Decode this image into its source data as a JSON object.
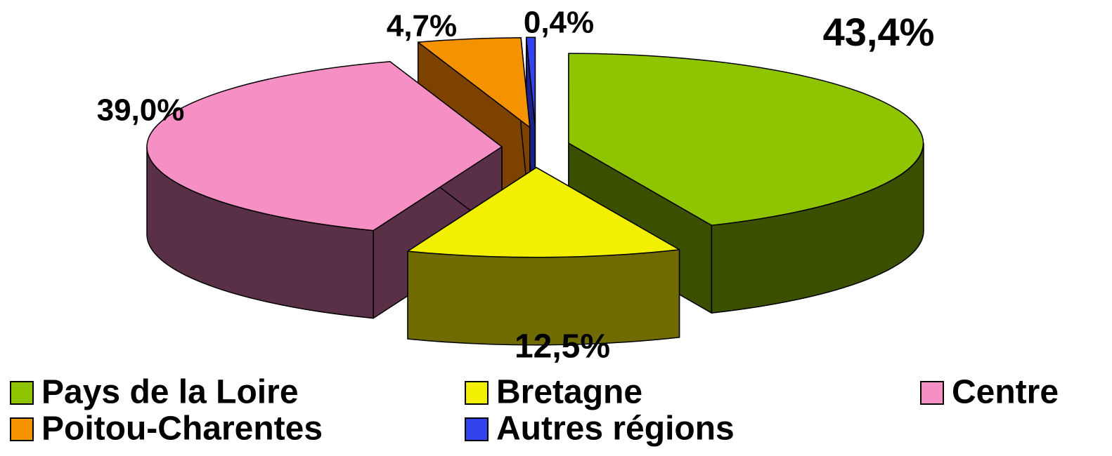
{
  "chart_data": {
    "type": "pie",
    "categories": [
      "Pays de la Loire",
      "Bretagne",
      "Centre",
      "Poitou-Charentes",
      "Autres régions"
    ],
    "values": [
      43.4,
      12.5,
      39.0,
      4.7,
      0.4
    ],
    "value_labels": [
      "43,4%",
      "12,5%",
      "39,0%",
      "4,7%",
      "0,4%"
    ],
    "colors": [
      "#8fc400",
      "#f2f000",
      "#f58fc4",
      "#f59200",
      "#3344ee"
    ],
    "side_colors": [
      "#3a4f00",
      "#6f6b00",
      "#5a3046",
      "#7d4200",
      "#1a2288"
    ],
    "legend": "bottom"
  }
}
